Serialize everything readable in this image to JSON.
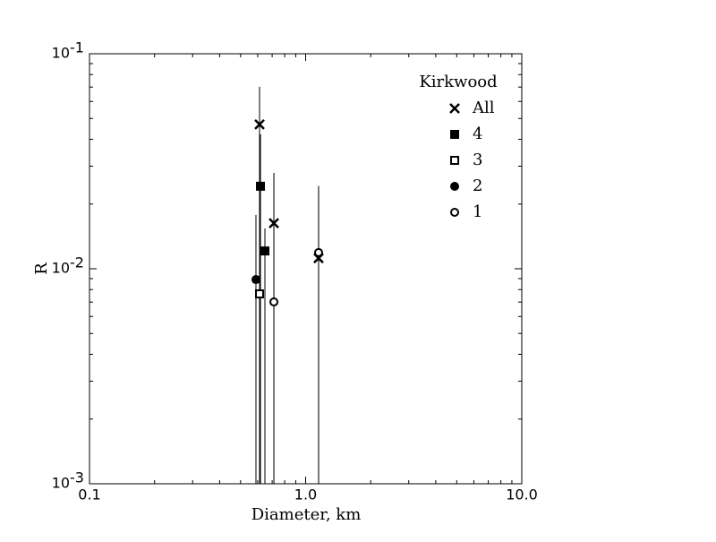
{
  "chart_data": {
    "type": "scatter",
    "xlabel": "Diameter, km",
    "ylabel": "R",
    "xscale": "log",
    "yscale": "log",
    "xlim": [
      0.1,
      10
    ],
    "ylim": [
      0.001,
      0.1
    ],
    "xticks": [
      {
        "value": 0.1,
        "label": "0.1"
      },
      {
        "value": 1,
        "label": "1.0"
      },
      {
        "value": 10,
        "label": "10.0"
      }
    ],
    "yticks": [
      {
        "value": 0.001,
        "label": "10",
        "exponent": "-3"
      },
      {
        "value": 0.01,
        "label": "10",
        "exponent": "-2"
      },
      {
        "value": 0.1,
        "label": "10",
        "exponent": "-1"
      }
    ],
    "legend_title": "Kirkwood",
    "legend_loc": "upper right",
    "series": [
      {
        "name": "All",
        "marker": "x",
        "color": "#000000",
        "x": [
          0.612,
          0.713,
          1.148
        ],
        "values": [
          0.0469,
          0.0163,
          0.0112
        ],
        "yerr_lower": [
          0.0469,
          0.0163,
          0.0112
        ],
        "yerr_upper": [
          0.0233,
          0.0116,
          0.0125
        ]
      },
      {
        "name": "4",
        "marker": "square-filled",
        "color": "#000000",
        "x": [
          0.618,
          0.648
        ],
        "values": [
          0.0242,
          0.0121
        ],
        "yerr_lower": [
          0.0242,
          0.0121
        ],
        "yerr_upper": [
          0.018,
          0.0033
        ]
      },
      {
        "name": "3",
        "marker": "square-open",
        "color": "#000000",
        "x": [
          0.612
        ],
        "values": [
          0.00764
        ],
        "yerr_lower": [
          0.00764
        ],
        "yerr_upper": [
          0.0019
        ]
      },
      {
        "name": "2",
        "marker": "circle-filled",
        "color": "#000000",
        "x": [
          0.589
        ],
        "values": [
          0.00891
        ],
        "yerr_lower": [
          0.00891
        ],
        "yerr_upper": [
          0.0089
        ]
      },
      {
        "name": "1",
        "marker": "circle-open",
        "color": "#000000",
        "x": [
          0.713,
          1.148
        ],
        "values": [
          0.00701,
          0.0119
        ],
        "yerr_lower": [
          0.00701,
          0.0119
        ],
        "yerr_upper": [
          0.0209,
          0.0124
        ]
      }
    ]
  }
}
